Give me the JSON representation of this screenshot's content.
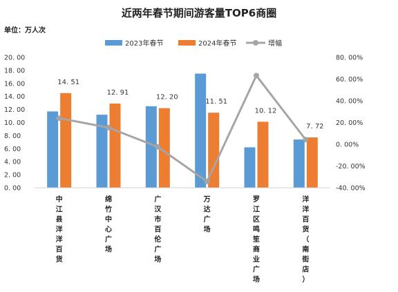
{
  "chart_data": {
    "type": "bar",
    "title": "近两年春节期间游客量TOP6商圈",
    "unit_label": "单位：万人次",
    "categories": [
      "中江县洋洋百货",
      "绵竹中心广场",
      "广汉市百伦广场",
      "万达广场",
      "罗江区鸣笙商业广场",
      "洋洋百货（南街店）"
    ],
    "series": [
      {
        "name": "2023年春节",
        "type": "bar",
        "axis": "left",
        "color": "#5B9BD5",
        "values": [
          11.7,
          11.2,
          12.5,
          17.5,
          6.2,
          7.4
        ]
      },
      {
        "name": "2024年春节",
        "type": "bar",
        "axis": "left",
        "color": "#ED7D31",
        "values": [
          14.51,
          12.91,
          12.2,
          11.51,
          10.12,
          7.72
        ]
      },
      {
        "name": "增幅",
        "type": "line",
        "axis": "right",
        "color": "#A5A5A5",
        "values": [
          24.0,
          15.3,
          -2.4,
          -34.2,
          63.2,
          4.3
        ]
      }
    ],
    "data_labels": [
      "14. 51",
      "12. 91",
      "12. 20",
      "11. 51",
      "10. 12",
      "7. 72"
    ],
    "y_left": {
      "min": 0,
      "max": 20,
      "step": 2,
      "tick_labels": [
        "0. 00",
        "2. 00",
        "4. 00",
        "6. 00",
        "8. 00",
        "10. 00",
        "12. 00",
        "14. 00",
        "16. 00",
        "18. 00",
        "20. 00"
      ]
    },
    "y_right": {
      "min": -40,
      "max": 80,
      "step": 20,
      "tick_labels": [
        "-40. 00%",
        "-20. 00%",
        "0. 00%",
        "20. 00%",
        "40. 00%",
        "60. 00%",
        "80. 00%"
      ]
    },
    "legend_position": "top",
    "grid": false
  }
}
